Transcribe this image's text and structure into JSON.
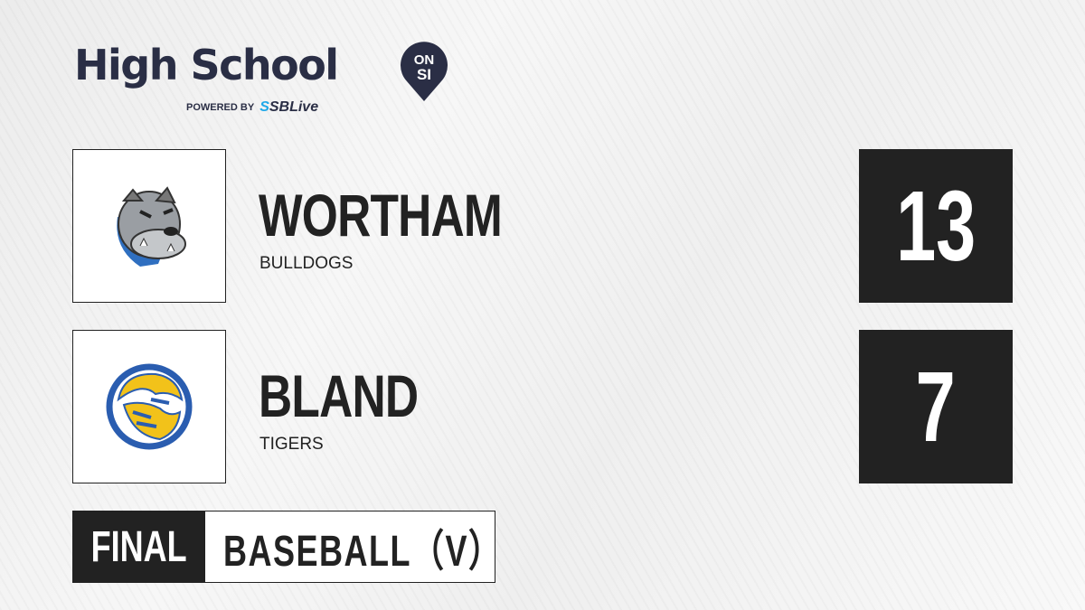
{
  "brand": {
    "title": "High School",
    "badge_top": "ON",
    "badge_bottom": "SI",
    "powered_by": "POWERED BY",
    "sbl_prefix": "S",
    "sbl_name": "SBLive",
    "accent": "#1fa8e8",
    "navy": "#2a2e45"
  },
  "teams": [
    {
      "name": "WORTHAM",
      "mascot": "BULLDOGS",
      "score": "13",
      "logo_icon": "bulldog-logo"
    },
    {
      "name": "BLAND",
      "mascot": "TIGERS",
      "score": "7",
      "logo_icon": "tiger-logo"
    }
  ],
  "status": {
    "label": "FINAL",
    "sport": "BASEBALL（V）"
  }
}
